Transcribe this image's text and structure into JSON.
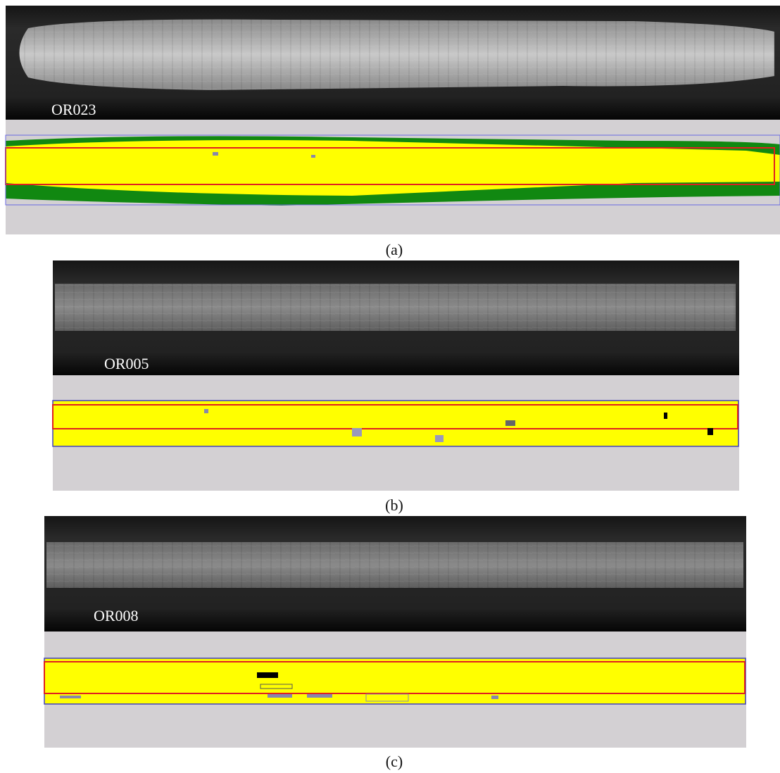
{
  "panels": [
    {
      "sample_label": "OR023",
      "caption": "(a)"
    },
    {
      "sample_label": "OR005",
      "caption": "(b)"
    },
    {
      "sample_label": "OR008",
      "caption": "(c)"
    }
  ]
}
